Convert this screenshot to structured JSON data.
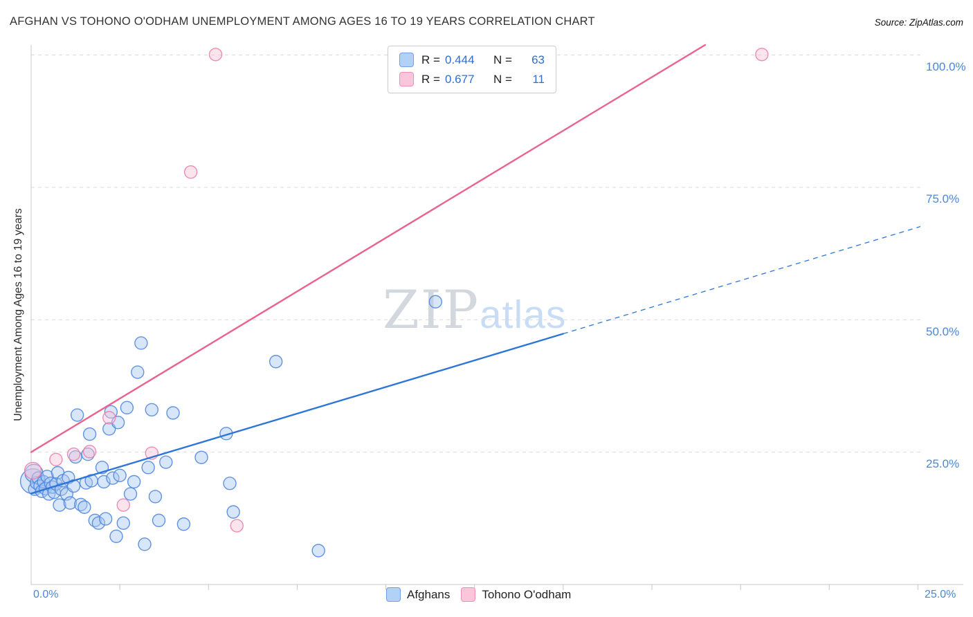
{
  "header": {
    "title": "AFGHAN VS TOHONO O'ODHAM UNEMPLOYMENT AMONG AGES 16 TO 19 YEARS CORRELATION CHART",
    "source": "Source: ZipAtlas.com"
  },
  "watermark": {
    "zip": "ZIP",
    "atlas": "atlas"
  },
  "y_axis": {
    "label": "Unemployment Among Ages 16 to 19 years",
    "tick_labels": [
      "100.0%",
      "75.0%",
      "50.0%",
      "25.0%"
    ]
  },
  "x_axis": {
    "min_label": "0.0%",
    "max_label": "25.0%"
  },
  "legend_box": {
    "rows": [
      {
        "r_label": "R =",
        "r_value": "0.444",
        "n_label": "N =",
        "n_value": "63"
      },
      {
        "r_label": "R =",
        "r_value": "0.677",
        "n_label": "N =",
        "n_value": "11"
      }
    ]
  },
  "bottom_legend": {
    "items": [
      {
        "label": "Afghans"
      },
      {
        "label": "Tohono O'odham"
      }
    ]
  },
  "colors": {
    "afghan_fill": "#a9c8f2",
    "afghan_stroke": "#5187de",
    "afghan_line": "#2e75d6",
    "tohono_fill": "#f9c3d6",
    "tohono_stroke": "#ea82ab",
    "tohono_line": "#e8638f",
    "grid": "#d9d9d9",
    "axis": "#c7c7c7",
    "tick_label": "#4a86d8"
  },
  "chart_data": {
    "type": "scatter",
    "title": "AFGHAN VS TOHONO O'ODHAM UNEMPLOYMENT AMONG AGES 16 TO 19 YEARS CORRELATION CHART",
    "xlabel": "",
    "ylabel": "Unemployment Among Ages 16 to 19 years",
    "x_range": [
      0,
      25.07
    ],
    "y_range": [
      0,
      101.9
    ],
    "x_ticks": [
      2.5,
      5,
      7.5,
      10,
      12.5,
      15,
      17.5,
      20,
      22.5,
      25
    ],
    "x_tick_labels": [
      "0.0%",
      "25.0%"
    ],
    "y_gridlines": [
      25,
      50,
      75,
      100
    ],
    "y_tick_labels": [
      "25.0%",
      "50.0%",
      "75.0%",
      "100.0%"
    ],
    "legend": [
      "Afghans",
      "Tohono O'odham"
    ],
    "legend_position": "bottom",
    "grid": "dashed-horizontal",
    "series": [
      {
        "name": "Afghans",
        "R": 0.444,
        "N": 63,
        "points": [
          [
            0.05,
            19.5,
            18
          ],
          [
            0.08,
            21.0,
            13
          ],
          [
            0.1,
            18.0
          ],
          [
            0.15,
            19.2
          ],
          [
            0.2,
            20.1
          ],
          [
            0.25,
            18.6
          ],
          [
            0.3,
            17.6
          ],
          [
            0.35,
            19.4
          ],
          [
            0.4,
            18.1
          ],
          [
            0.45,
            20.4
          ],
          [
            0.5,
            17.1
          ],
          [
            0.55,
            19.1
          ],
          [
            0.6,
            18.4
          ],
          [
            0.65,
            17.4
          ],
          [
            0.7,
            19.0
          ],
          [
            0.75,
            21.1
          ],
          [
            0.8,
            15.0
          ],
          [
            0.85,
            18.0
          ],
          [
            0.9,
            19.6
          ],
          [
            1.0,
            17.1
          ],
          [
            1.05,
            20.2
          ],
          [
            1.1,
            15.4
          ],
          [
            1.2,
            18.6
          ],
          [
            1.25,
            24.1
          ],
          [
            1.3,
            32.0
          ],
          [
            1.4,
            15.1
          ],
          [
            1.5,
            14.6
          ],
          [
            1.55,
            19.2
          ],
          [
            1.6,
            24.6
          ],
          [
            1.65,
            28.4
          ],
          [
            1.7,
            19.6
          ],
          [
            1.8,
            12.1
          ],
          [
            1.9,
            11.6
          ],
          [
            2.0,
            22.1
          ],
          [
            2.05,
            19.4
          ],
          [
            2.1,
            12.4
          ],
          [
            2.2,
            29.4
          ],
          [
            2.25,
            32.6
          ],
          [
            2.3,
            20.1
          ],
          [
            2.4,
            9.1
          ],
          [
            2.45,
            30.6
          ],
          [
            2.5,
            20.6
          ],
          [
            2.6,
            11.6
          ],
          [
            2.7,
            33.4
          ],
          [
            2.8,
            17.1
          ],
          [
            2.9,
            19.4
          ],
          [
            3.0,
            40.1
          ],
          [
            3.1,
            45.6
          ],
          [
            3.2,
            7.6
          ],
          [
            3.3,
            22.1
          ],
          [
            3.4,
            33.0
          ],
          [
            3.5,
            16.6
          ],
          [
            3.6,
            12.1
          ],
          [
            3.8,
            23.1
          ],
          [
            4.0,
            32.4
          ],
          [
            4.3,
            11.4
          ],
          [
            4.8,
            24.0
          ],
          [
            5.5,
            28.5
          ],
          [
            5.6,
            19.1
          ],
          [
            5.7,
            13.7
          ],
          [
            6.9,
            42.1
          ],
          [
            8.1,
            6.4
          ],
          [
            11.4,
            53.4
          ]
        ]
      },
      {
        "name": "Tohono O'odham",
        "R": 0.677,
        "N": 11,
        "points": [
          [
            0.05,
            21.5,
            12
          ],
          [
            0.7,
            23.6
          ],
          [
            1.2,
            24.6
          ],
          [
            1.65,
            25.1
          ],
          [
            2.2,
            31.5
          ],
          [
            2.6,
            15.0
          ],
          [
            3.4,
            24.8
          ],
          [
            4.5,
            77.9
          ],
          [
            5.2,
            100.1
          ],
          [
            5.8,
            11.1
          ],
          [
            20.6,
            100.1
          ]
        ]
      }
    ],
    "trend_lines": [
      {
        "series": "Afghans",
        "start": [
          0,
          17.2
        ],
        "end": [
          25.07,
          67.6
        ],
        "solid_until_x": 15.0
      },
      {
        "series": "Tohono O'odham",
        "start": [
          0,
          25.0
        ],
        "end": [
          19.0,
          101.9
        ],
        "solid_until_x": 19.0
      }
    ]
  }
}
